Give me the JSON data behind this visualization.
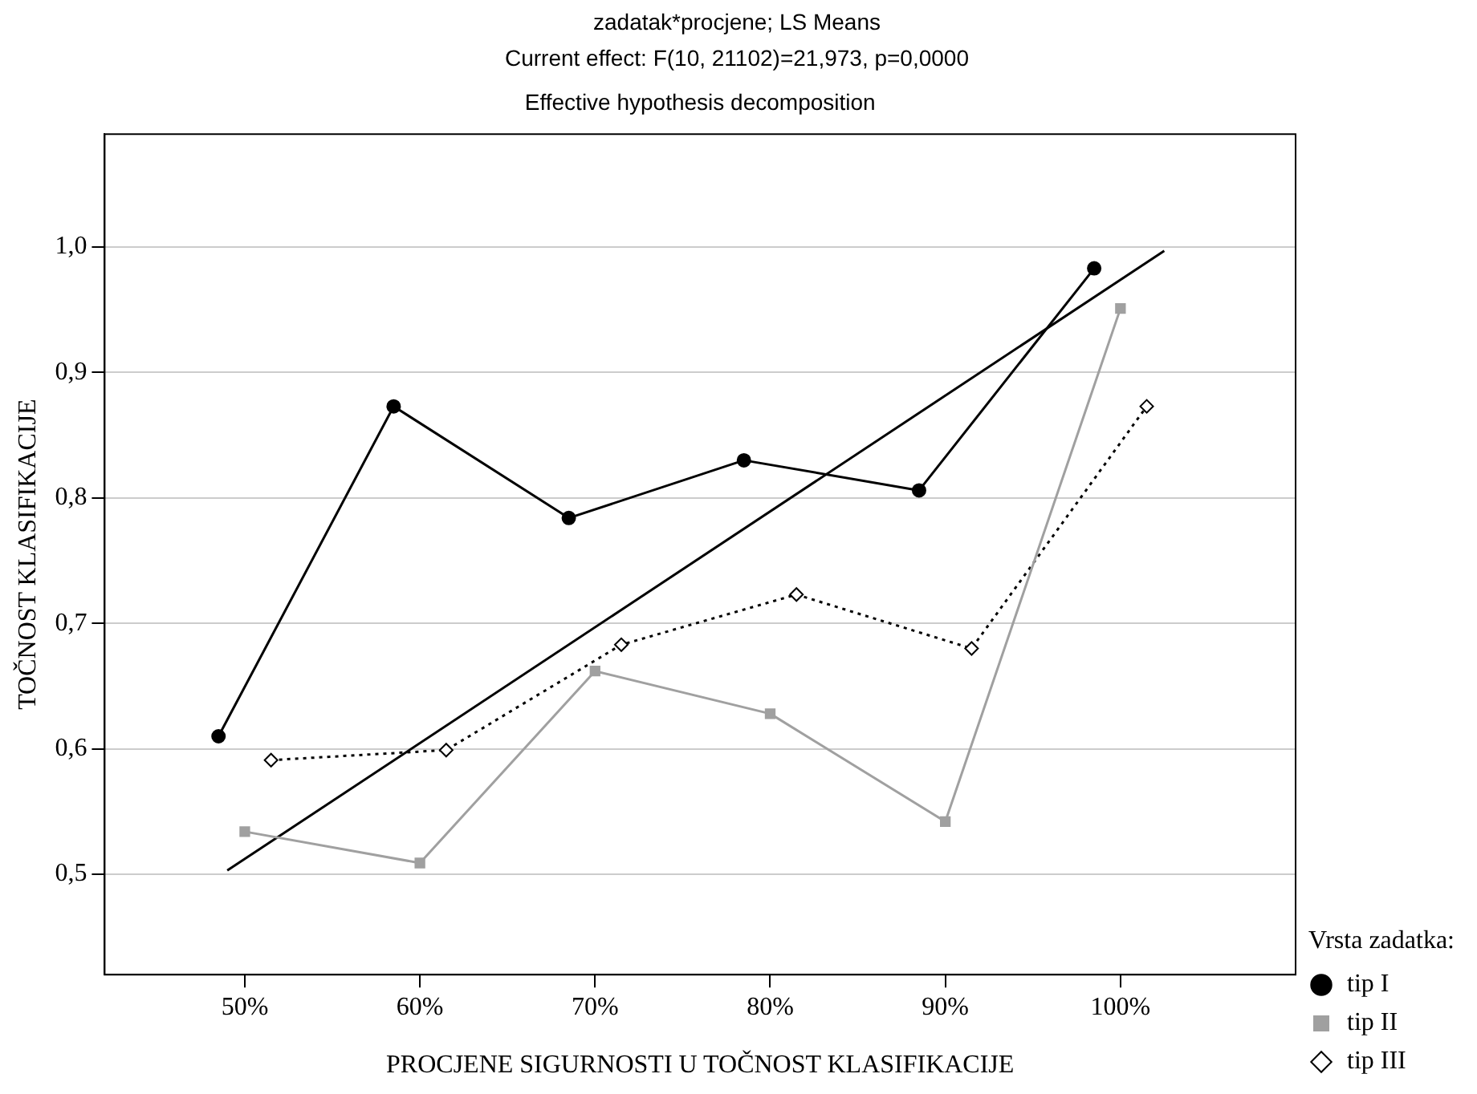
{
  "chart_data": {
    "type": "line",
    "title": "zadatak*procjene; LS Means",
    "subtitle": "Current effect: F(10, 21102)=21,973, p=0,0000",
    "annotations": [
      "Effective hypothesis decomposition"
    ],
    "xlabel": "PROCJENE SIGURNOSTI U TOČNOST KLASIFIKACIJE",
    "ylabel": "TOČNOST KLASIFIKACIJE",
    "legend_title": "Vrsta zadatka:",
    "xlim": [
      42,
      110
    ],
    "xticks": [
      {
        "value": 50,
        "label": "50%"
      },
      {
        "value": 60,
        "label": "60%"
      },
      {
        "value": 70,
        "label": "70%"
      },
      {
        "value": 80,
        "label": "80%"
      },
      {
        "value": 90,
        "label": "90%"
      },
      {
        "value": 100,
        "label": "100%"
      }
    ],
    "ylim": [
      0.42,
      1.09
    ],
    "yticks": [
      {
        "value": 0.5,
        "label": "0,5"
      },
      {
        "value": 0.6,
        "label": "0,6"
      },
      {
        "value": 0.7,
        "label": "0,7"
      },
      {
        "value": 0.8,
        "label": "0,8"
      },
      {
        "value": 0.9,
        "label": "0,9"
      },
      {
        "value": 1.0,
        "label": "1,0"
      }
    ],
    "grid": "y",
    "legend": "bottom right",
    "series": [
      {
        "name": "tip I",
        "color": "#000000",
        "marker": "circle",
        "line_style": "solid",
        "x": [
          48.5,
          58.5,
          68.5,
          78.5,
          88.5,
          98.5
        ],
        "values": [
          0.61,
          0.873,
          0.784,
          0.83,
          0.806,
          0.983
        ]
      },
      {
        "name": "tip II",
        "color": "#a0a0a0",
        "marker": "square",
        "line_style": "solid",
        "x": [
          50,
          60,
          70,
          80,
          90,
          100
        ],
        "values": [
          0.534,
          0.509,
          0.662,
          0.628,
          0.542,
          0.951
        ]
      },
      {
        "name": "tip III",
        "color": "#000000",
        "marker": "diamond",
        "line_style": "dotted",
        "x": [
          51.5,
          61.5,
          71.5,
          81.5,
          91.5,
          101.5
        ],
        "values": [
          0.591,
          0.599,
          0.683,
          0.723,
          0.68,
          0.873
        ]
      },
      {
        "color": "#000000",
        "marker": "none",
        "line_style": "solid",
        "x": [
          49,
          102.5
        ],
        "values": [
          0.503,
          0.997
        ]
      }
    ]
  }
}
